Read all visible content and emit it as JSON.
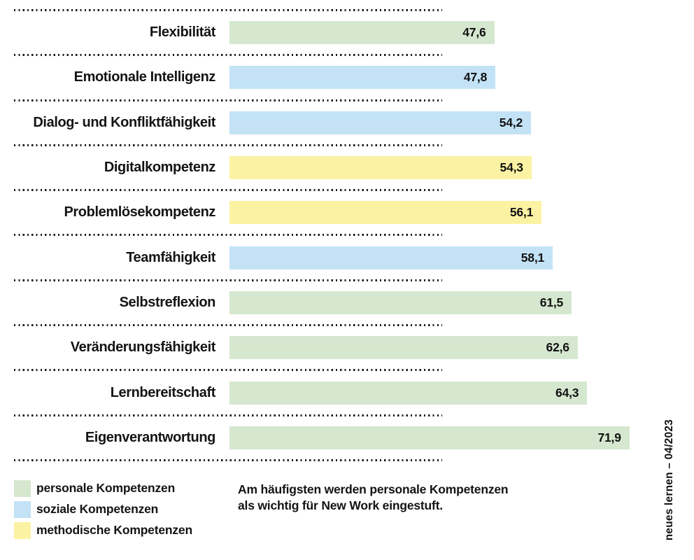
{
  "chart_data": {
    "type": "bar",
    "orientation": "horizontal",
    "title": "",
    "xlabel": "",
    "ylabel": "",
    "xlim": [
      0,
      83.5
    ],
    "grid": "dotted row separators",
    "legend_position": "bottom-left",
    "categories": [
      "Flexibilität",
      "Emotionale Intelligenz",
      "Dialog- und Konfliktfähigkeit",
      "Digitalkompetenz",
      "Problemlösekompetenz",
      "Teamfähigkeit",
      "Selbstreflexion",
      "Veränderungsfähigkeit",
      "Lernbereitschaft",
      "Eigenverantwortung"
    ],
    "values": [
      47.6,
      47.8,
      54.2,
      54.3,
      56.1,
      58.1,
      61.5,
      62.6,
      64.3,
      71.9
    ],
    "value_labels": [
      "47,6",
      "47,8",
      "54,2",
      "54,3",
      "56,1",
      "58,1",
      "61,5",
      "62,6",
      "64,3",
      "71,9"
    ],
    "bar_groups": [
      "personale",
      "soziale",
      "soziale",
      "methodische",
      "methodische",
      "soziale",
      "personale",
      "personale",
      "personale",
      "personale"
    ],
    "colors": {
      "personale": "#d6e7d0",
      "soziale": "#c3e2f6",
      "methodische": "#fbf2a3"
    }
  },
  "legend": {
    "items": [
      {
        "label": "personale Kompetenzen",
        "group": "personale",
        "color": "#d6e7d0"
      },
      {
        "label": "soziale Kompetenzen",
        "group": "soziale",
        "color": "#c3e2f6"
      },
      {
        "label": "methodische Kompetenzen",
        "group": "methodische",
        "color": "#fbf2a3"
      }
    ]
  },
  "caption": {
    "lines": [
      "Am häufigsten werden personale Kompetenzen",
      "als wichtig für New Work eingestuft."
    ]
  },
  "source_note": "neues lernen – 04/2023"
}
